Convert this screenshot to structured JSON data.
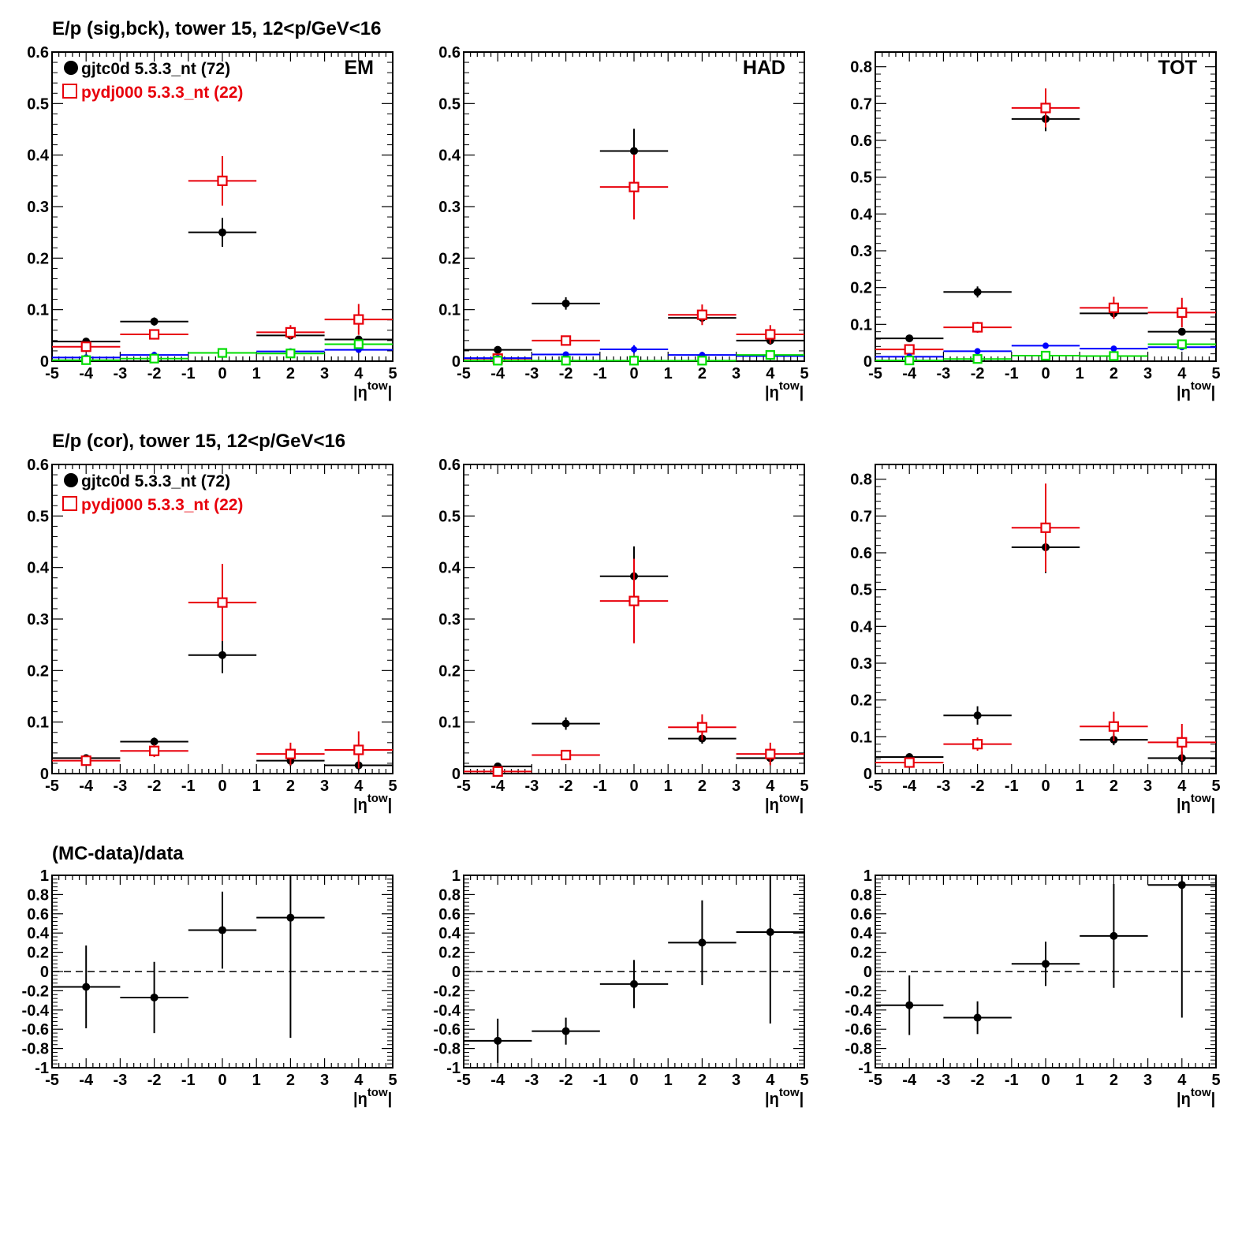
{
  "row_titles": [
    "E/p (sig,bck), tower 15, 12<p/GeV<16",
    "E/p (cor), tower 15, 12<p/GeV<16",
    "(MC-data)/data"
  ],
  "colors": {
    "data": "#000000",
    "mc": "#e8000b",
    "blue": "#0000ff",
    "green": "#00dd00"
  },
  "legend": {
    "data_label": "gjtc0d 5.3.3_nt (72)",
    "mc_label": "pydj000 5.3.3_nt (22)"
  },
  "axis": {
    "x_title": "|η",
    "x_title_sup": "tow",
    "x_title_close": "|"
  },
  "chart_data": [
    {
      "type": "scatter",
      "row": 0,
      "col": 0,
      "corner_label": "EM",
      "show_legend": true,
      "xlim": [
        -5,
        5
      ],
      "ylim": [
        0,
        0.6
      ],
      "yticks": [
        "0",
        "0.1",
        "0.2",
        "0.3",
        "0.4",
        "0.5",
        "0.6"
      ],
      "series": [
        {
          "name": "gjtc0d 5.3.3_nt (72)",
          "color": "data",
          "marker": "filled-circle",
          "points": [
            {
              "x": -4,
              "y": 0.038,
              "ey": 0.005
            },
            {
              "x": -2,
              "y": 0.077,
              "ey": 0.008
            },
            {
              "x": 0,
              "y": 0.25,
              "ey": 0.028
            },
            {
              "x": 2,
              "y": 0.05,
              "ey": 0.006
            },
            {
              "x": 4,
              "y": 0.042,
              "ey": 0.006
            }
          ]
        },
        {
          "name": "pydj000 5.3.3_nt (22)",
          "color": "mc",
          "marker": "open-square",
          "points": [
            {
              "x": -4,
              "y": 0.028,
              "ey": 0.006
            },
            {
              "x": -2,
              "y": 0.052,
              "ey": 0.01
            },
            {
              "x": 0,
              "y": 0.35,
              "ey": 0.048
            },
            {
              "x": 2,
              "y": 0.056,
              "ey": 0.014
            },
            {
              "x": 4,
              "y": 0.081,
              "ey": 0.03
            }
          ]
        },
        {
          "color": "blue",
          "marker": "small-circle",
          "points": [
            {
              "x": -4,
              "y": 0.007,
              "ey": 0.002
            },
            {
              "x": -2,
              "y": 0.012,
              "ey": 0.002
            },
            {
              "x": 0,
              "y": 0.016,
              "ey": 0.003
            },
            {
              "x": 2,
              "y": 0.019,
              "ey": 0.003
            },
            {
              "x": 4,
              "y": 0.022,
              "ey": 0.003
            }
          ]
        },
        {
          "color": "green",
          "marker": "open-square-small",
          "points": [
            {
              "x": -4,
              "y": 0.002,
              "ey": 0.002
            },
            {
              "x": -2,
              "y": 0.005,
              "ey": 0.002
            },
            {
              "x": 0,
              "y": 0.016,
              "ey": 0.003
            },
            {
              "x": 2,
              "y": 0.015,
              "ey": 0.004
            },
            {
              "x": 4,
              "y": 0.033,
              "ey": 0.008
            }
          ]
        }
      ]
    },
    {
      "type": "scatter",
      "row": 0,
      "col": 1,
      "corner_label": "HAD",
      "show_legend": false,
      "xlim": [
        -5,
        5
      ],
      "ylim": [
        0,
        0.6
      ],
      "yticks": [
        "0",
        "0.1",
        "0.2",
        "0.3",
        "0.4",
        "0.5",
        "0.6"
      ],
      "series": [
        {
          "color": "data",
          "marker": "filled-circle",
          "points": [
            {
              "x": -4,
              "y": 0.022,
              "ey": 0.004
            },
            {
              "x": -2,
              "y": 0.112,
              "ey": 0.012
            },
            {
              "x": 0,
              "y": 0.408,
              "ey": 0.043
            },
            {
              "x": 2,
              "y": 0.084,
              "ey": 0.01
            },
            {
              "x": 4,
              "y": 0.04,
              "ey": 0.008
            }
          ]
        },
        {
          "color": "mc",
          "marker": "open-square",
          "points": [
            {
              "x": -4,
              "y": 0.005,
              "ey": 0.003
            },
            {
              "x": -2,
              "y": 0.04,
              "ey": 0.006
            },
            {
              "x": 0,
              "y": 0.338,
              "ey": 0.063
            },
            {
              "x": 2,
              "y": 0.09,
              "ey": 0.02
            },
            {
              "x": 4,
              "y": 0.052,
              "ey": 0.018
            }
          ]
        },
        {
          "color": "blue",
          "marker": "small-circle",
          "points": [
            {
              "x": -4,
              "y": 0.006,
              "ey": 0.002
            },
            {
              "x": -2,
              "y": 0.013,
              "ey": 0.003
            },
            {
              "x": 0,
              "y": 0.023,
              "ey": 0.008
            },
            {
              "x": 2,
              "y": 0.012,
              "ey": 0.003
            },
            {
              "x": 4,
              "y": 0.01,
              "ey": 0.003
            }
          ]
        },
        {
          "color": "green",
          "marker": "open-square-small",
          "points": [
            {
              "x": -4,
              "y": 0.001,
              "ey": 0.001
            },
            {
              "x": -2,
              "y": 0.001,
              "ey": 0.001
            },
            {
              "x": 0,
              "y": 0.001,
              "ey": 0.002
            },
            {
              "x": 2,
              "y": 0.001,
              "ey": 0.002
            },
            {
              "x": 4,
              "y": 0.012,
              "ey": 0.004
            }
          ]
        }
      ]
    },
    {
      "type": "scatter",
      "row": 0,
      "col": 2,
      "corner_label": "TOT",
      "show_legend": false,
      "xlim": [
        -5,
        5
      ],
      "ylim": [
        0,
        0.84
      ],
      "yticks": [
        "0",
        "0.1",
        "0.2",
        "0.3",
        "0.4",
        "0.5",
        "0.6",
        "0.7",
        "0.8"
      ],
      "series": [
        {
          "color": "data",
          "marker": "filled-circle",
          "points": [
            {
              "x": -4,
              "y": 0.062,
              "ey": 0.006
            },
            {
              "x": -2,
              "y": 0.188,
              "ey": 0.015
            },
            {
              "x": 0,
              "y": 0.658,
              "ey": 0.033
            },
            {
              "x": 2,
              "y": 0.13,
              "ey": 0.013
            },
            {
              "x": 4,
              "y": 0.08,
              "ey": 0.01
            }
          ]
        },
        {
          "color": "mc",
          "marker": "open-square",
          "points": [
            {
              "x": -4,
              "y": 0.032,
              "ey": 0.007
            },
            {
              "x": -2,
              "y": 0.092,
              "ey": 0.015
            },
            {
              "x": 0,
              "y": 0.688,
              "ey": 0.053
            },
            {
              "x": 2,
              "y": 0.145,
              "ey": 0.03
            },
            {
              "x": 4,
              "y": 0.132,
              "ey": 0.04
            }
          ]
        },
        {
          "color": "blue",
          "marker": "small-circle",
          "points": [
            {
              "x": -4,
              "y": 0.012,
              "ey": 0.003
            },
            {
              "x": -2,
              "y": 0.027,
              "ey": 0.004
            },
            {
              "x": 0,
              "y": 0.042,
              "ey": 0.008
            },
            {
              "x": 2,
              "y": 0.034,
              "ey": 0.004
            },
            {
              "x": 4,
              "y": 0.038,
              "ey": 0.005
            }
          ]
        },
        {
          "color": "green",
          "marker": "open-square-small",
          "points": [
            {
              "x": -4,
              "y": 0.002,
              "ey": 0.002
            },
            {
              "x": -2,
              "y": 0.006,
              "ey": 0.002
            },
            {
              "x": 0,
              "y": 0.015,
              "ey": 0.004
            },
            {
              "x": 2,
              "y": 0.014,
              "ey": 0.004
            },
            {
              "x": 4,
              "y": 0.046,
              "ey": 0.01
            }
          ]
        }
      ]
    },
    {
      "type": "scatter",
      "row": 1,
      "col": 0,
      "corner_label": "",
      "show_legend": true,
      "xlim": [
        -5,
        5
      ],
      "ylim": [
        0,
        0.6
      ],
      "yticks": [
        "0",
        "0.1",
        "0.2",
        "0.3",
        "0.4",
        "0.5",
        "0.6"
      ],
      "series": [
        {
          "name": "gjtc0d 5.3.3_nt (72)",
          "color": "data",
          "marker": "filled-circle",
          "points": [
            {
              "x": -4,
              "y": 0.03,
              "ey": 0.004
            },
            {
              "x": -2,
              "y": 0.062,
              "ey": 0.008
            },
            {
              "x": 0,
              "y": 0.23,
              "ey": 0.035
            },
            {
              "x": 2,
              "y": 0.025,
              "ey": 0.01
            },
            {
              "x": 4,
              "y": 0.016,
              "ey": 0.01
            }
          ]
        },
        {
          "name": "pydj000 5.3.3_nt (22)",
          "color": "mc",
          "marker": "open-square",
          "points": [
            {
              "x": -4,
              "y": 0.025,
              "ey": 0.006
            },
            {
              "x": -2,
              "y": 0.044,
              "ey": 0.012
            },
            {
              "x": 0,
              "y": 0.332,
              "ey": 0.075
            },
            {
              "x": 2,
              "y": 0.038,
              "ey": 0.022
            },
            {
              "x": 4,
              "y": 0.046,
              "ey": 0.036
            }
          ]
        }
      ]
    },
    {
      "type": "scatter",
      "row": 1,
      "col": 1,
      "corner_label": "",
      "show_legend": false,
      "xlim": [
        -5,
        5
      ],
      "ylim": [
        0,
        0.6
      ],
      "yticks": [
        "0",
        "0.1",
        "0.2",
        "0.3",
        "0.4",
        "0.5",
        "0.6"
      ],
      "series": [
        {
          "color": "data",
          "marker": "filled-circle",
          "points": [
            {
              "x": -4,
              "y": 0.014,
              "ey": 0.004
            },
            {
              "x": -2,
              "y": 0.097,
              "ey": 0.012
            },
            {
              "x": 0,
              "y": 0.383,
              "ey": 0.058
            },
            {
              "x": 2,
              "y": 0.068,
              "ey": 0.01
            },
            {
              "x": 4,
              "y": 0.03,
              "ey": 0.012
            }
          ]
        },
        {
          "color": "mc",
          "marker": "open-square",
          "points": [
            {
              "x": -4,
              "y": 0.004,
              "ey": 0.003
            },
            {
              "x": -2,
              "y": 0.036,
              "ey": 0.006
            },
            {
              "x": 0,
              "y": 0.335,
              "ey": 0.082
            },
            {
              "x": 2,
              "y": 0.09,
              "ey": 0.025
            },
            {
              "x": 4,
              "y": 0.038,
              "ey": 0.022
            }
          ]
        }
      ]
    },
    {
      "type": "scatter",
      "row": 1,
      "col": 2,
      "corner_label": "",
      "show_legend": false,
      "xlim": [
        -5,
        5
      ],
      "ylim": [
        0,
        0.84
      ],
      "yticks": [
        "0",
        "0.1",
        "0.2",
        "0.3",
        "0.4",
        "0.5",
        "0.6",
        "0.7",
        "0.8"
      ],
      "series": [
        {
          "color": "data",
          "marker": "filled-circle",
          "points": [
            {
              "x": -4,
              "y": 0.045,
              "ey": 0.005
            },
            {
              "x": -2,
              "y": 0.158,
              "ey": 0.025
            },
            {
              "x": 0,
              "y": 0.615,
              "ey": 0.07
            },
            {
              "x": 2,
              "y": 0.092,
              "ey": 0.015
            },
            {
              "x": 4,
              "y": 0.042,
              "ey": 0.018
            }
          ]
        },
        {
          "color": "mc",
          "marker": "open-square",
          "points": [
            {
              "x": -4,
              "y": 0.03,
              "ey": 0.008
            },
            {
              "x": -2,
              "y": 0.08,
              "ey": 0.018
            },
            {
              "x": 0,
              "y": 0.668,
              "ey": 0.12
            },
            {
              "x": 2,
              "y": 0.128,
              "ey": 0.04
            },
            {
              "x": 4,
              "y": 0.085,
              "ey": 0.05
            }
          ]
        }
      ]
    },
    {
      "type": "scatter",
      "row": 2,
      "col": 0,
      "corner_label": "",
      "show_legend": false,
      "xlim": [
        -5,
        5
      ],
      "ylim": [
        -1,
        1
      ],
      "dashed_zero": true,
      "yticks": [
        "-1",
        "-0.8",
        "-0.6",
        "-0.4",
        "-0.2",
        "0",
        "0.2",
        "0.4",
        "0.6",
        "0.8",
        "1"
      ],
      "series": [
        {
          "color": "data",
          "marker": "filled-circle",
          "points": [
            {
              "x": -4,
              "y": -0.16,
              "ey": 0.43
            },
            {
              "x": -2,
              "y": -0.27,
              "ey": 0.37
            },
            {
              "x": 0,
              "y": 0.43,
              "ey": 0.4
            },
            {
              "x": 2,
              "y": 0.56,
              "ey": 1.25
            }
          ]
        }
      ]
    },
    {
      "type": "scatter",
      "row": 2,
      "col": 1,
      "corner_label": "",
      "show_legend": false,
      "xlim": [
        -5,
        5
      ],
      "ylim": [
        -1,
        1
      ],
      "dashed_zero": true,
      "yticks": [
        "-1",
        "-0.8",
        "-0.6",
        "-0.4",
        "-0.2",
        "0",
        "0.2",
        "0.4",
        "0.6",
        "0.8",
        "1"
      ],
      "series": [
        {
          "color": "data",
          "marker": "filled-circle",
          "points": [
            {
              "x": -4,
              "y": -0.72,
              "ey": 0.23
            },
            {
              "x": -2,
              "y": -0.62,
              "ey": 0.14
            },
            {
              "x": 0,
              "y": -0.13,
              "ey": 0.25
            },
            {
              "x": 2,
              "y": 0.3,
              "ey": 0.44
            },
            {
              "x": 4,
              "y": 0.41,
              "ey": 0.95
            }
          ]
        }
      ]
    },
    {
      "type": "scatter",
      "row": 2,
      "col": 2,
      "corner_label": "",
      "show_legend": false,
      "xlim": [
        -5,
        5
      ],
      "ylim": [
        -1,
        1
      ],
      "dashed_zero": true,
      "yticks": [
        "-1",
        "-0.8",
        "-0.6",
        "-0.4",
        "-0.2",
        "0",
        "0.2",
        "0.4",
        "0.6",
        "0.8",
        "1"
      ],
      "series": [
        {
          "color": "data",
          "marker": "filled-circle",
          "points": [
            {
              "x": -4,
              "y": -0.35,
              "ey": 0.31
            },
            {
              "x": -2,
              "y": -0.48,
              "ey": 0.17
            },
            {
              "x": 0,
              "y": 0.08,
              "ey": 0.23
            },
            {
              "x": 2,
              "y": 0.37,
              "ey": 0.54
            },
            {
              "x": 4,
              "y": 0.9,
              "ey": 1.38
            }
          ]
        }
      ]
    }
  ]
}
